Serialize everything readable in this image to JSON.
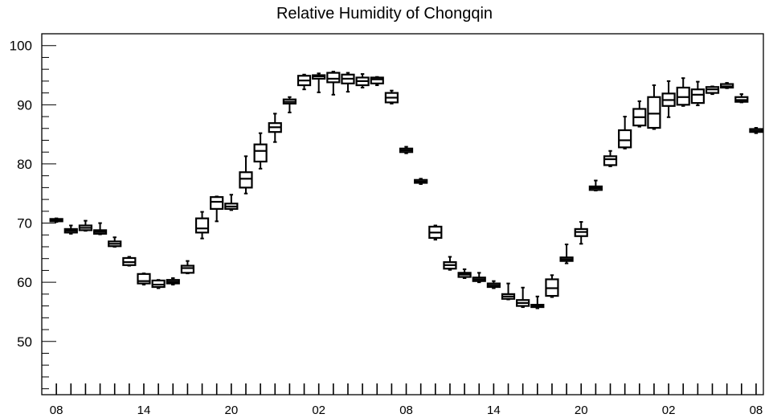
{
  "chart_data": {
    "type": "box",
    "title": "Relative Humidity of Chongqin",
    "xlabel": "",
    "ylabel": "",
    "ylim": [
      41,
      102
    ],
    "y_ticks": [
      50,
      60,
      70,
      80,
      90,
      100
    ],
    "x_tick_labels": [
      "08",
      "14",
      "20",
      "02",
      "08",
      "14",
      "20",
      "02",
      "08"
    ],
    "x_tick_label_hours": [
      0,
      6,
      12,
      18,
      24,
      30,
      36,
      42,
      48
    ],
    "x_range_hours": [
      -1,
      48.5
    ],
    "grid": false,
    "boxes": [
      {
        "hour": 0,
        "min": 70.2,
        "q1": 70.3,
        "median": 70.5,
        "q3": 70.7,
        "max": 70.8
      },
      {
        "hour": 1,
        "min": 68.2,
        "q1": 68.4,
        "median": 68.7,
        "q3": 69.0,
        "max": 69.6
      },
      {
        "hour": 2,
        "min": 68.7,
        "q1": 68.8,
        "median": 69.2,
        "q3": 69.6,
        "max": 70.4
      },
      {
        "hour": 3,
        "min": 68.1,
        "q1": 68.2,
        "median": 68.5,
        "q3": 68.8,
        "max": 70.0
      },
      {
        "hour": 4,
        "min": 66.0,
        "q1": 66.1,
        "median": 66.5,
        "q3": 66.9,
        "max": 67.6
      },
      {
        "hour": 5,
        "min": 62.8,
        "q1": 62.9,
        "median": 63.4,
        "q3": 64.1,
        "max": 64.3
      },
      {
        "hour": 6,
        "min": 59.6,
        "q1": 59.8,
        "median": 60.2,
        "q3": 61.4,
        "max": 61.5
      },
      {
        "hour": 7,
        "min": 59.0,
        "q1": 59.2,
        "median": 59.6,
        "q3": 60.3,
        "max": 60.4
      },
      {
        "hour": 8,
        "min": 59.6,
        "q1": 59.8,
        "median": 60.1,
        "q3": 60.4,
        "max": 60.7
      },
      {
        "hour": 9,
        "min": 61.5,
        "q1": 61.6,
        "median": 62.4,
        "q3": 62.8,
        "max": 63.6
      },
      {
        "hour": 10,
        "min": 67.4,
        "q1": 68.4,
        "median": 69.1,
        "q3": 70.8,
        "max": 71.9
      },
      {
        "hour": 11,
        "min": 70.3,
        "q1": 72.4,
        "median": 73.6,
        "q3": 74.4,
        "max": 74.5
      },
      {
        "hour": 12,
        "min": 72.2,
        "q1": 72.4,
        "median": 72.8,
        "q3": 73.3,
        "max": 74.8
      },
      {
        "hour": 13,
        "min": 75.0,
        "q1": 76.0,
        "median": 77.5,
        "q3": 78.6,
        "max": 81.3
      },
      {
        "hour": 14,
        "min": 79.2,
        "q1": 80.4,
        "median": 82.2,
        "q3": 83.3,
        "max": 85.2
      },
      {
        "hour": 15,
        "min": 83.7,
        "q1": 85.4,
        "median": 86.2,
        "q3": 86.9,
        "max": 88.5
      },
      {
        "hour": 16,
        "min": 88.7,
        "q1": 90.2,
        "median": 90.5,
        "q3": 90.9,
        "max": 91.3
      },
      {
        "hour": 17,
        "min": 92.6,
        "q1": 93.3,
        "median": 94.1,
        "q3": 94.9,
        "max": 95.1
      },
      {
        "hour": 18,
        "min": 92.1,
        "q1": 94.4,
        "median": 94.8,
        "q3": 95.0,
        "max": 95.3
      },
      {
        "hour": 19,
        "min": 91.7,
        "q1": 93.8,
        "median": 94.4,
        "q3": 95.4,
        "max": 95.6
      },
      {
        "hour": 20,
        "min": 92.2,
        "q1": 93.6,
        "median": 94.4,
        "q3": 95.1,
        "max": 95.4
      },
      {
        "hour": 21,
        "min": 92.9,
        "q1": 93.3,
        "median": 94.0,
        "q3": 94.6,
        "max": 95.2
      },
      {
        "hour": 22,
        "min": 93.3,
        "q1": 93.6,
        "median": 94.3,
        "q3": 94.6,
        "max": 94.7
      },
      {
        "hour": 23,
        "min": 90.2,
        "q1": 90.4,
        "median": 91.2,
        "q3": 92.0,
        "max": 92.4
      },
      {
        "hour": 24,
        "min": 81.8,
        "q1": 82.0,
        "median": 82.3,
        "q3": 82.6,
        "max": 82.9
      },
      {
        "hour": 25,
        "min": 76.6,
        "q1": 76.8,
        "median": 77.0,
        "q3": 77.3,
        "max": 77.5
      },
      {
        "hour": 26,
        "min": 67.2,
        "q1": 67.5,
        "median": 68.4,
        "q3": 69.4,
        "max": 69.6
      },
      {
        "hour": 27,
        "min": 62.1,
        "q1": 62.3,
        "median": 62.9,
        "q3": 63.4,
        "max": 64.3
      },
      {
        "hour": 28,
        "min": 60.7,
        "q1": 60.9,
        "median": 61.3,
        "q3": 61.6,
        "max": 62.2
      },
      {
        "hour": 29,
        "min": 60.0,
        "q1": 60.2,
        "median": 60.5,
        "q3": 60.8,
        "max": 61.6
      },
      {
        "hour": 30,
        "min": 59.0,
        "q1": 59.2,
        "median": 59.5,
        "q3": 59.8,
        "max": 60.2
      },
      {
        "hour": 31,
        "min": 57.1,
        "q1": 57.2,
        "median": 57.6,
        "q3": 58.0,
        "max": 59.8
      },
      {
        "hour": 32,
        "min": 55.8,
        "q1": 56.0,
        "median": 56.5,
        "q3": 57.0,
        "max": 59.1
      },
      {
        "hour": 33,
        "min": 55.6,
        "q1": 55.8,
        "median": 56.0,
        "q3": 56.2,
        "max": 57.6
      },
      {
        "hour": 34,
        "min": 57.5,
        "q1": 57.7,
        "median": 59.0,
        "q3": 60.5,
        "max": 61.2
      },
      {
        "hour": 35,
        "min": 63.2,
        "q1": 63.6,
        "median": 63.9,
        "q3": 64.2,
        "max": 66.4
      },
      {
        "hour": 36,
        "min": 66.5,
        "q1": 67.8,
        "median": 68.5,
        "q3": 69.0,
        "max": 70.2
      },
      {
        "hour": 37,
        "min": 75.5,
        "q1": 75.6,
        "median": 75.9,
        "q3": 76.2,
        "max": 77.2
      },
      {
        "hour": 38,
        "min": 79.6,
        "q1": 79.8,
        "median": 80.8,
        "q3": 81.3,
        "max": 82.2
      },
      {
        "hour": 39,
        "min": 82.6,
        "q1": 82.8,
        "median": 84.0,
        "q3": 85.7,
        "max": 88.0
      },
      {
        "hour": 40,
        "min": 86.3,
        "q1": 86.5,
        "median": 87.9,
        "q3": 89.3,
        "max": 90.6
      },
      {
        "hour": 41,
        "min": 85.9,
        "q1": 86.1,
        "median": 88.5,
        "q3": 91.3,
        "max": 93.3
      },
      {
        "hour": 42,
        "min": 87.9,
        "q1": 89.8,
        "median": 90.8,
        "q3": 91.9,
        "max": 94.0
      },
      {
        "hour": 43,
        "min": 89.8,
        "q1": 90.0,
        "median": 91.3,
        "q3": 92.9,
        "max": 94.5
      },
      {
        "hour": 44,
        "min": 89.9,
        "q1": 90.3,
        "median": 91.7,
        "q3": 92.6,
        "max": 93.9
      },
      {
        "hour": 45,
        "min": 91.8,
        "q1": 92.0,
        "median": 92.6,
        "q3": 93.0,
        "max": 93.1
      },
      {
        "hour": 46,
        "min": 92.8,
        "q1": 92.9,
        "median": 93.1,
        "q3": 93.5,
        "max": 93.7
      },
      {
        "hour": 47,
        "min": 90.4,
        "q1": 90.5,
        "median": 90.8,
        "q3": 91.3,
        "max": 91.8
      },
      {
        "hour": 48,
        "min": 85.2,
        "q1": 85.4,
        "median": 85.6,
        "q3": 85.9,
        "max": 86.1
      }
    ]
  }
}
